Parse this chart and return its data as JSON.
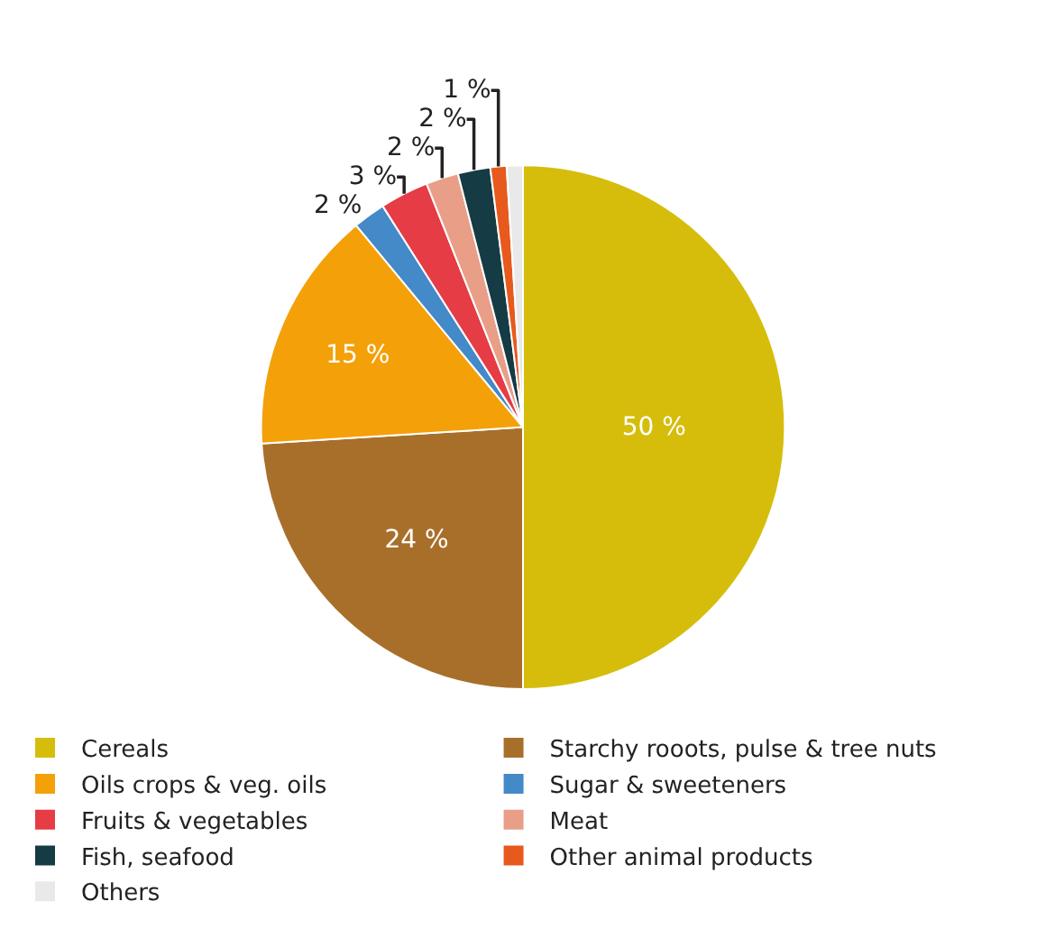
{
  "chart_data": {
    "type": "pie",
    "categories": [
      "Cereals",
      "Starchy rooots, pulse & tree nuts",
      "Oils crops & veg. oils",
      "Sugar & sweeteners",
      "Fruits & vegetables",
      "Meat",
      "Fish, seafood",
      "Other animal products",
      "Others"
    ],
    "values": [
      50,
      24,
      15,
      2,
      3,
      2,
      2,
      1,
      1
    ],
    "colors": [
      "#d6bd0b",
      "#a86f2b",
      "#f4a009",
      "#4489c8",
      "#e53c45",
      "#e99e88",
      "#153b45",
      "#e8591d",
      "#e9e9e9"
    ],
    "value_labels": [
      "50 %",
      "24 %",
      "15 %",
      "2 %",
      "3 %",
      "2 %",
      "2 %",
      "1 %",
      null
    ],
    "legend": "bottom"
  }
}
